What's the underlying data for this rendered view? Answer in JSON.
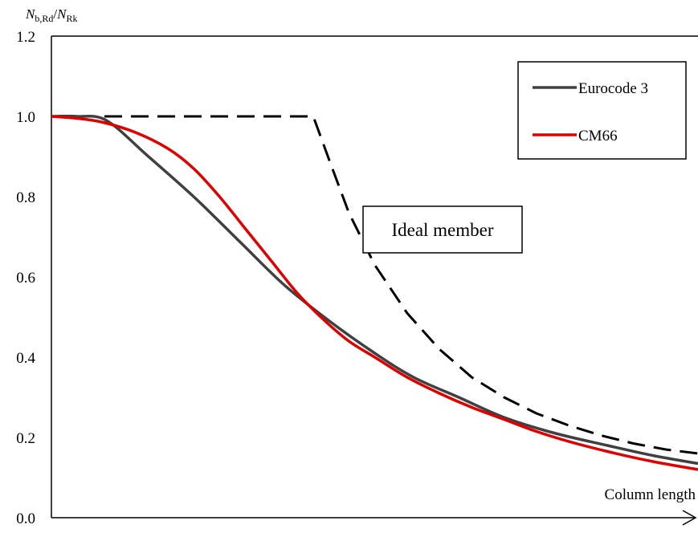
{
  "chart_data": {
    "type": "line",
    "title": "",
    "ylabel": {
      "num_main": "N",
      "num_sub": "b,Rd",
      "sep": "/",
      "den_main": "N",
      "den_sub": "Rk"
    },
    "xlabel": "Column length",
    "ylim": [
      0,
      1.2
    ],
    "xlim": [
      0,
      1
    ],
    "yticks": [
      0.0,
      0.2,
      0.4,
      0.6,
      0.8,
      1.0,
      1.2
    ],
    "ytick_labels": [
      "0.0",
      "0.2",
      "0.4",
      "0.6",
      "0.8",
      "1.0",
      "1.2"
    ],
    "grid": false,
    "legend_position": "top-right",
    "series": [
      {
        "name": "Eurocode 3",
        "color": "#404040",
        "dash": "solid",
        "x": [
          0,
          0.04,
          0.085,
          0.15,
          0.22,
          0.29,
          0.36,
          0.43,
          0.5,
          0.56,
          0.63,
          0.7,
          0.78,
          0.86,
          0.93,
          1.0
        ],
        "y": [
          1.0,
          1.0,
          0.99,
          0.9,
          0.8,
          0.69,
          0.58,
          0.49,
          0.41,
          0.35,
          0.3,
          0.25,
          0.21,
          0.18,
          0.155,
          0.135
        ]
      },
      {
        "name": "CM66",
        "color": "#e00000",
        "dash": "solid",
        "x": [
          0,
          0.04,
          0.08,
          0.13,
          0.18,
          0.22,
          0.26,
          0.3,
          0.34,
          0.38,
          0.42,
          0.46,
          0.5,
          0.55,
          0.6,
          0.65,
          0.7,
          0.75,
          0.8,
          0.86,
          0.93,
          1.0
        ],
        "y": [
          1.0,
          0.995,
          0.985,
          0.96,
          0.92,
          0.87,
          0.8,
          0.72,
          0.64,
          0.56,
          0.495,
          0.44,
          0.4,
          0.35,
          0.31,
          0.275,
          0.245,
          0.215,
          0.19,
          0.165,
          0.14,
          0.12
        ]
      },
      {
        "name": "Ideal member",
        "color": "#000000",
        "dash": "dashed",
        "x": [
          0,
          0.405,
          0.43,
          0.46,
          0.5,
          0.55,
          0.6,
          0.65,
          0.7,
          0.75,
          0.8,
          0.85,
          0.9,
          0.95,
          1.0
        ],
        "y": [
          1.0,
          1.0,
          0.89,
          0.76,
          0.63,
          0.51,
          0.42,
          0.35,
          0.3,
          0.26,
          0.23,
          0.205,
          0.185,
          0.17,
          0.16
        ]
      }
    ],
    "legend": [
      {
        "label": "Eurocode 3",
        "color": "#404040"
      },
      {
        "label": "CM66",
        "color": "#e00000"
      }
    ],
    "annotations": [
      {
        "text": "Ideal member",
        "target_series": "Ideal member"
      }
    ]
  }
}
